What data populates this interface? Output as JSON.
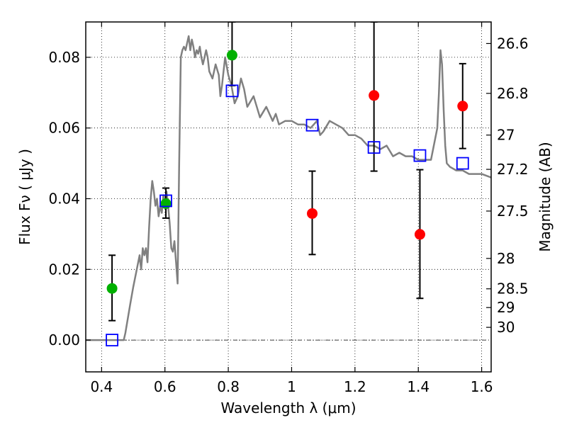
{
  "chart_data": {
    "type": "scatter",
    "xlabel": "Wavelength  λ (μm)",
    "ylabel": "Flux  Fν  ( μJy )",
    "ylabel_right": "Magnitude (AB)",
    "xlim": [
      0.35,
      1.63
    ],
    "ylim": [
      -0.009,
      0.09
    ],
    "grid": true,
    "x_ticks": [
      0.4,
      0.6,
      0.8,
      1.0,
      1.2,
      1.4,
      1.6
    ],
    "x_tick_labels": [
      "0.4",
      "0.6",
      "0.8",
      "1",
      "1.2",
      "1.4",
      "1.6"
    ],
    "y_ticks": [
      0.0,
      0.02,
      0.04,
      0.06,
      0.08
    ],
    "y_tick_labels": [
      "0.00",
      "0.02",
      "0.04",
      "0.06",
      "0.08"
    ],
    "right_ticks": [
      {
        "label": "26.6",
        "flux": 0.0839
      },
      {
        "label": "26.8",
        "flux": 0.0698
      },
      {
        "label": "27",
        "flux": 0.058
      },
      {
        "label": "27.2",
        "flux": 0.0483
      },
      {
        "label": "27.5",
        "flux": 0.0365
      },
      {
        "label": "28",
        "flux": 0.0231
      },
      {
        "label": "28.5",
        "flux": 0.0145
      },
      {
        "label": "29",
        "flux": 0.0092
      },
      {
        "label": "30",
        "flux": 0.0036
      }
    ],
    "series": [
      {
        "kind": "line",
        "color": "#808080",
        "x": [
          0.35,
          0.47,
          0.475,
          0.49,
          0.5,
          0.52,
          0.522,
          0.525,
          0.53,
          0.535,
          0.54,
          0.545,
          0.55,
          0.555,
          0.56,
          0.565,
          0.57,
          0.575,
          0.58,
          0.585,
          0.59,
          0.595,
          0.6,
          0.605,
          0.61,
          0.615,
          0.62,
          0.625,
          0.63,
          0.635,
          0.64,
          0.645,
          0.65,
          0.655,
          0.66,
          0.665,
          0.67,
          0.675,
          0.68,
          0.685,
          0.69,
          0.695,
          0.7,
          0.705,
          0.71,
          0.715,
          0.72,
          0.725,
          0.73,
          0.735,
          0.74,
          0.75,
          0.76,
          0.77,
          0.775,
          0.78,
          0.79,
          0.8,
          0.81,
          0.82,
          0.83,
          0.84,
          0.85,
          0.86,
          0.88,
          0.9,
          0.92,
          0.94,
          0.95,
          0.96,
          0.98,
          1.0,
          1.02,
          1.04,
          1.06,
          1.08,
          1.09,
          1.1,
          1.12,
          1.14,
          1.16,
          1.18,
          1.2,
          1.22,
          1.24,
          1.26,
          1.28,
          1.3,
          1.32,
          1.34,
          1.36,
          1.38,
          1.4,
          1.42,
          1.44,
          1.46,
          1.465,
          1.47,
          1.475,
          1.48,
          1.485,
          1.49,
          1.5,
          1.52,
          1.54,
          1.56,
          1.58,
          1.6,
          1.63
        ],
        "y": [
          0.0,
          0.0,
          0.002,
          0.01,
          0.015,
          0.024,
          0.022,
          0.02,
          0.026,
          0.024,
          0.026,
          0.022,
          0.032,
          0.04,
          0.045,
          0.042,
          0.038,
          0.04,
          0.035,
          0.038,
          0.036,
          0.041,
          0.04,
          0.042,
          0.038,
          0.033,
          0.026,
          0.025,
          0.028,
          0.022,
          0.016,
          0.05,
          0.08,
          0.082,
          0.083,
          0.082,
          0.084,
          0.086,
          0.082,
          0.085,
          0.083,
          0.08,
          0.082,
          0.081,
          0.083,
          0.08,
          0.078,
          0.08,
          0.082,
          0.08,
          0.076,
          0.074,
          0.078,
          0.075,
          0.069,
          0.072,
          0.08,
          0.075,
          0.072,
          0.067,
          0.069,
          0.074,
          0.071,
          0.066,
          0.069,
          0.063,
          0.066,
          0.062,
          0.064,
          0.061,
          0.062,
          0.062,
          0.061,
          0.061,
          0.06,
          0.062,
          0.058,
          0.059,
          0.062,
          0.061,
          0.06,
          0.058,
          0.058,
          0.057,
          0.055,
          0.055,
          0.054,
          0.055,
          0.052,
          0.053,
          0.052,
          0.052,
          0.051,
          0.051,
          0.051,
          0.06,
          0.07,
          0.082,
          0.078,
          0.065,
          0.055,
          0.05,
          0.049,
          0.048,
          0.048,
          0.047,
          0.047,
          0.047,
          0.046
        ]
      },
      {
        "kind": "points",
        "marker": "circle",
        "color": "#00b000",
        "x": [
          0.433,
          0.603,
          0.812
        ],
        "y": [
          0.0146,
          0.0386,
          0.0806
        ],
        "yerr_low": [
          0.0055,
          0.0345,
          0.072
        ],
        "yerr_high": [
          0.024,
          0.043,
          0.09
        ]
      },
      {
        "kind": "points",
        "marker": "circle",
        "color": "#ff0000",
        "x": [
          1.065,
          1.26,
          1.405,
          1.54
        ],
        "y": [
          0.0358,
          0.0692,
          0.0299,
          0.0662
        ],
        "yerr_low": [
          0.0242,
          0.0478,
          0.0118,
          0.0542
        ],
        "yerr_high": [
          0.0478,
          0.09,
          0.0482,
          0.0782
        ]
      },
      {
        "kind": "points",
        "marker": "open-square",
        "color": "#0000ff",
        "x": [
          0.433,
          0.603,
          0.812,
          1.065,
          1.26,
          1.405,
          1.54
        ],
        "y": [
          0.0,
          0.0394,
          0.0705,
          0.0608,
          0.0545,
          0.0522,
          0.05
        ]
      }
    ],
    "hline": {
      "y": 0.0,
      "style": "dash-dot",
      "color": "#000000"
    }
  }
}
